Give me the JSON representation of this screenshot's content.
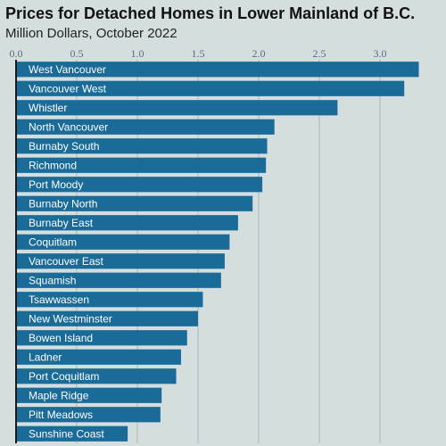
{
  "chart_data": {
    "type": "bar",
    "orientation": "horizontal",
    "title": "Prices for Detached Homes in Lower Mainland of B.C.",
    "subtitle": "Million Dollars, October 2022",
    "xlabel": "",
    "ylabel": "",
    "xlim": [
      0,
      3.3
    ],
    "xticks": [
      0.0,
      0.5,
      1.0,
      1.5,
      2.0,
      2.5,
      3.0
    ],
    "xtick_labels": [
      "0.0",
      "0.5",
      "1.0",
      "1.5",
      "2.0",
      "2.5",
      "3.0"
    ],
    "tick_position": "top",
    "grid": true,
    "legend": "none",
    "categories": [
      "West Vancouver",
      "Vancouver West",
      "Whistler",
      "North Vancouver",
      "Burnaby South",
      "Richmond",
      "Port Moody",
      "Burnaby North",
      "Burnaby East",
      "Coquitlam",
      "Vancouver East",
      "Squamish",
      "Tsawwassen",
      "New Westminster",
      "Bowen Island",
      "Ladner",
      "Port Coquitlam",
      "Maple Ridge",
      "Pitt Meadows",
      "Sunshine Coast"
    ],
    "values": [
      3.32,
      3.2,
      2.65,
      2.13,
      2.07,
      2.06,
      2.03,
      1.95,
      1.83,
      1.76,
      1.72,
      1.69,
      1.54,
      1.5,
      1.41,
      1.36,
      1.32,
      1.2,
      1.19,
      0.92
    ],
    "colors": {
      "bar": "#1a6b98",
      "background": "#d5dedf",
      "grid": "#aab8a8",
      "axis": "#1a1a1a",
      "tick_text": "#5a6a6e",
      "label_text": "#ffffff"
    }
  }
}
